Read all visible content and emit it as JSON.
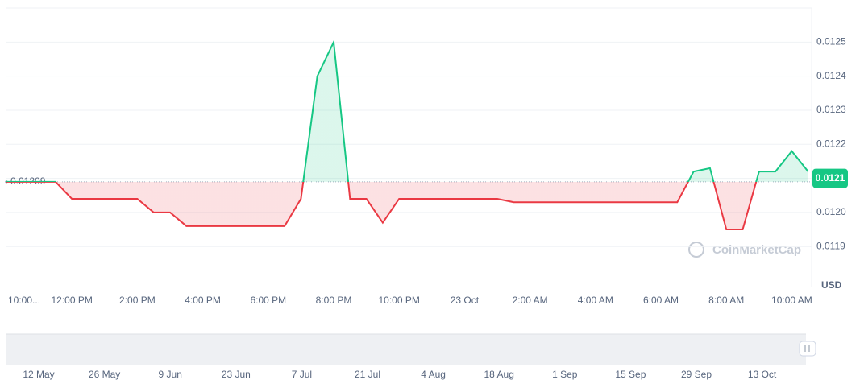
{
  "chart_data": {
    "type": "line",
    "categories": [
      "10:00...",
      null,
      null,
      null,
      "12:00 PM",
      null,
      null,
      null,
      "2:00 PM",
      null,
      null,
      null,
      "4:00 PM",
      null,
      null,
      null,
      "6:00 PM",
      null,
      null,
      null,
      "8:00 PM",
      null,
      null,
      null,
      "10:00 PM",
      null,
      null,
      null,
      "23 Oct",
      null,
      null,
      null,
      "2:00 AM",
      null,
      null,
      null,
      "4:00 AM",
      null,
      null,
      null,
      "6:00 AM",
      null,
      null,
      null,
      "8:00 AM",
      null,
      null,
      null,
      "10:00 AM",
      null
    ],
    "values": [
      0.01209,
      0.01209,
      0.01209,
      0.01209,
      0.01204,
      0.01204,
      0.01204,
      0.01204,
      0.01204,
      0.012,
      0.012,
      0.01196,
      0.01196,
      0.01196,
      0.01196,
      0.01196,
      0.01196,
      0.01196,
      0.01204,
      0.0124,
      0.0125,
      0.01204,
      0.01204,
      0.01197,
      0.01204,
      0.01204,
      0.01204,
      0.01204,
      0.01204,
      0.01204,
      0.01204,
      0.01203,
      0.01203,
      0.01203,
      0.01203,
      0.01203,
      0.01203,
      0.01203,
      0.01203,
      0.01203,
      0.01203,
      0.01203,
      0.01212,
      0.01213,
      0.01195,
      0.01195,
      0.01212,
      0.01212,
      0.01218,
      0.01212
    ],
    "baseline": 0.01209,
    "current_price": 0.0121,
    "up_color": "#16c784",
    "down_color": "#ea3943",
    "ylim": [
      0.01178,
      0.0126
    ],
    "yticks": [
      0.0119,
      {
        "value": 0.012,
        "label": "0.0120"
      },
      0.0121,
      0.0122,
      0.0123,
      0.0124,
      0.0125
    ],
    "y_unit": "USD",
    "grid": true,
    "watermark": "CoinMarketCap",
    "navigator_labels": [
      "12 May",
      "26 May",
      "9 Jun",
      "23 Jun",
      "7 Jul",
      "21 Jul",
      "4 Aug",
      "18 Aug",
      "1 Sep",
      "15 Sep",
      "29 Sep",
      "13 Oct"
    ]
  }
}
